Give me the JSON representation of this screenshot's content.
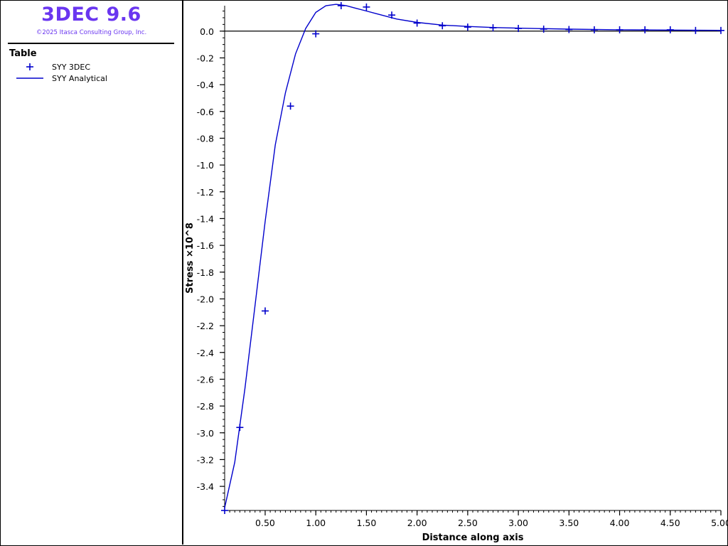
{
  "app": {
    "title": "3DEC 9.6",
    "copyright": "©2025 Itasca Consulting Group, Inc.",
    "accent_color": "#6a36f0"
  },
  "legend": {
    "heading": "Table",
    "items": [
      {
        "label": "SYY 3DEC",
        "symbol": "plus-marker",
        "color": "#0000cc"
      },
      {
        "label": "SYY Analytical",
        "symbol": "line",
        "color": "#0000cc"
      }
    ]
  },
  "chart_data": {
    "type": "line",
    "xlabel": "Distance along axis",
    "ylabel": "Stress ×10^8",
    "xlim": [
      0.1,
      5.0
    ],
    "ylim": [
      -3.58,
      0.19
    ],
    "x_ticks": [
      "0.50",
      "1.00",
      "1.50",
      "2.00",
      "2.50",
      "3.00",
      "3.50",
      "4.00",
      "4.50",
      "5.00"
    ],
    "x_tick_values": [
      0.5,
      1.0,
      1.5,
      2.0,
      2.5,
      3.0,
      3.5,
      4.0,
      4.5,
      5.0
    ],
    "y_ticks": [
      "0.0",
      "-0.2",
      "-0.4",
      "-0.6",
      "-0.8",
      "-1.0",
      "-1.2",
      "-1.4",
      "-1.6",
      "-1.8",
      "-2.0",
      "-2.2",
      "-2.4",
      "-2.6",
      "-2.8",
      "-3.0",
      "-3.2",
      "-3.4"
    ],
    "y_tick_values": [
      0.0,
      -0.2,
      -0.4,
      -0.6,
      -0.8,
      -1.0,
      -1.2,
      -1.4,
      -1.6,
      -1.8,
      -2.0,
      -2.2,
      -2.4,
      -2.6,
      -2.8,
      -3.0,
      -3.2,
      -3.4
    ],
    "zero_line": true,
    "grid": false,
    "series": [
      {
        "name": "SYY 3DEC",
        "style": "markers",
        "color": "#0000cc",
        "x": [
          0.1,
          0.25,
          0.5,
          0.75,
          1.0,
          1.25,
          1.5,
          1.75,
          2.0,
          2.25,
          2.5,
          2.75,
          3.0,
          3.25,
          3.5,
          3.75,
          4.0,
          4.25,
          4.5,
          4.75,
          5.0
        ],
        "y": [
          -3.58,
          -2.96,
          -2.09,
          -0.56,
          -0.02,
          0.19,
          0.18,
          0.12,
          0.06,
          0.04,
          0.03,
          0.025,
          0.02,
          0.015,
          0.012,
          0.01,
          0.01,
          0.01,
          0.01,
          0.005,
          0.005
        ]
      },
      {
        "name": "SYY Analytical",
        "style": "line",
        "color": "#0000cc",
        "x": [
          0.1,
          0.2,
          0.3,
          0.4,
          0.5,
          0.6,
          0.7,
          0.8,
          0.9,
          1.0,
          1.1,
          1.2,
          1.3,
          1.4,
          1.5,
          1.6,
          1.7,
          1.8,
          2.0,
          2.25,
          2.5,
          2.75,
          3.0,
          3.5,
          4.0,
          4.5,
          5.0
        ],
        "y": [
          -3.56,
          -3.22,
          -2.67,
          -2.05,
          -1.42,
          -0.85,
          -0.46,
          -0.17,
          0.02,
          0.14,
          0.19,
          0.2,
          0.19,
          0.17,
          0.15,
          0.13,
          0.11,
          0.09,
          0.065,
          0.045,
          0.035,
          0.027,
          0.022,
          0.015,
          0.01,
          0.008,
          0.006
        ]
      }
    ]
  }
}
